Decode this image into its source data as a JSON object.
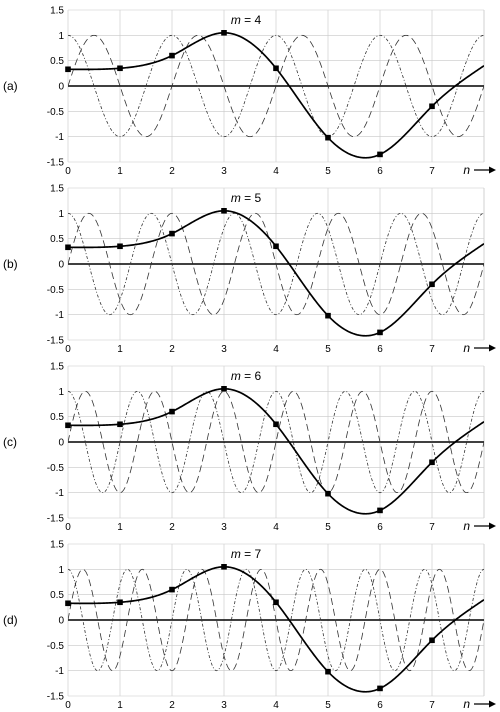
{
  "chart_data": [
    {
      "type": "line",
      "panel_label": "(a)",
      "title_var": "m",
      "title_value": "= 4",
      "x_axis_label": "n",
      "xlim": [
        0,
        8
      ],
      "ylim": [
        -1.5,
        1.5
      ],
      "grid": true,
      "x_ticks": [
        "0",
        "1",
        "2",
        "3",
        "4",
        "5",
        "6",
        "7"
      ],
      "y_ticks": [
        "1.5",
        "1",
        "0.5",
        "0",
        "-0.5",
        "-1",
        "-1.5"
      ],
      "samples": [
        {
          "n": 0,
          "value": 0.33
        },
        {
          "n": 1,
          "value": 0.35
        },
        {
          "n": 2,
          "value": 0.6
        },
        {
          "n": 3,
          "value": 1.05
        },
        {
          "n": 4,
          "value": 0.35
        },
        {
          "n": 5,
          "value": -1.02
        },
        {
          "n": 6,
          "value": -1.35
        },
        {
          "n": 7,
          "value": -0.4
        }
      ],
      "series": [
        {
          "style": "solid",
          "kind": "interpolated signal"
        },
        {
          "style": "dashed",
          "kind": "sinusoid",
          "frequency_cycles_per_sample": 0.5,
          "amplitude": 1
        },
        {
          "style": "dash-dot",
          "kind": "sinusoid",
          "frequency_cycles_per_sample": 0.5,
          "amplitude": 1
        }
      ]
    },
    {
      "type": "line",
      "panel_label": "(b)",
      "title_var": "m",
      "title_value": "= 5",
      "x_axis_label": "n",
      "xlim": [
        0,
        8
      ],
      "ylim": [
        -1.5,
        1.5
      ],
      "grid": true,
      "x_ticks": [
        "0",
        "1",
        "2",
        "3",
        "4",
        "5",
        "6",
        "7"
      ],
      "y_ticks": [
        "1.5",
        "1",
        "0.5",
        "0",
        "-0.5",
        "-1",
        "-1.5"
      ],
      "samples": [
        {
          "n": 0,
          "value": 0.33
        },
        {
          "n": 1,
          "value": 0.35
        },
        {
          "n": 2,
          "value": 0.6
        },
        {
          "n": 3,
          "value": 1.05
        },
        {
          "n": 4,
          "value": 0.35
        },
        {
          "n": 5,
          "value": -1.02
        },
        {
          "n": 6,
          "value": -1.35
        },
        {
          "n": 7,
          "value": -0.4
        }
      ],
      "series": [
        {
          "style": "solid",
          "kind": "interpolated signal"
        },
        {
          "style": "dashed",
          "kind": "sinusoid",
          "frequency_cycles_per_sample": 0.625,
          "amplitude": 1
        },
        {
          "style": "dash-dot",
          "kind": "sinusoid",
          "frequency_cycles_per_sample": 0.625,
          "amplitude": 1
        }
      ]
    },
    {
      "type": "line",
      "panel_label": "(c)",
      "title_var": "m",
      "title_value": "= 6",
      "x_axis_label": "n",
      "xlim": [
        0,
        8
      ],
      "ylim": [
        -1.5,
        1.5
      ],
      "grid": true,
      "x_ticks": [
        "0",
        "1",
        "2",
        "3",
        "4",
        "5",
        "6",
        "7"
      ],
      "y_ticks": [
        "1.5",
        "1",
        "0.5",
        "0",
        "-0.5",
        "-1",
        "-1.5"
      ],
      "samples": [
        {
          "n": 0,
          "value": 0.33
        },
        {
          "n": 1,
          "value": 0.35
        },
        {
          "n": 2,
          "value": 0.6
        },
        {
          "n": 3,
          "value": 1.05
        },
        {
          "n": 4,
          "value": 0.35
        },
        {
          "n": 5,
          "value": -1.02
        },
        {
          "n": 6,
          "value": -1.35
        },
        {
          "n": 7,
          "value": -0.4
        }
      ],
      "series": [
        {
          "style": "solid",
          "kind": "interpolated signal"
        },
        {
          "style": "dashed",
          "kind": "sinusoid",
          "frequency_cycles_per_sample": 0.75,
          "amplitude": 1
        },
        {
          "style": "dash-dot",
          "kind": "sinusoid",
          "frequency_cycles_per_sample": 0.75,
          "amplitude": 1
        }
      ]
    },
    {
      "type": "line",
      "panel_label": "(d)",
      "title_var": "m",
      "title_value": "= 7",
      "x_axis_label": "n",
      "xlim": [
        0,
        8
      ],
      "ylim": [
        -1.5,
        1.5
      ],
      "grid": true,
      "x_ticks": [
        "0",
        "1",
        "2",
        "3",
        "4",
        "5",
        "6",
        "7"
      ],
      "y_ticks": [
        "1.5",
        "1",
        "0.5",
        "0",
        "-0.5",
        "-1",
        "-1.5"
      ],
      "samples": [
        {
          "n": 0,
          "value": 0.33
        },
        {
          "n": 1,
          "value": 0.35
        },
        {
          "n": 2,
          "value": 0.6
        },
        {
          "n": 3,
          "value": 1.05
        },
        {
          "n": 4,
          "value": 0.35
        },
        {
          "n": 5,
          "value": -1.02
        },
        {
          "n": 6,
          "value": -1.35
        },
        {
          "n": 7,
          "value": -0.4
        }
      ],
      "series": [
        {
          "style": "solid",
          "kind": "interpolated signal"
        },
        {
          "style": "dashed",
          "kind": "sinusoid",
          "frequency_cycles_per_sample": 0.875,
          "amplitude": 1
        },
        {
          "style": "dash-dot",
          "kind": "sinusoid",
          "frequency_cycles_per_sample": 0.875,
          "amplitude": 1
        }
      ]
    }
  ]
}
